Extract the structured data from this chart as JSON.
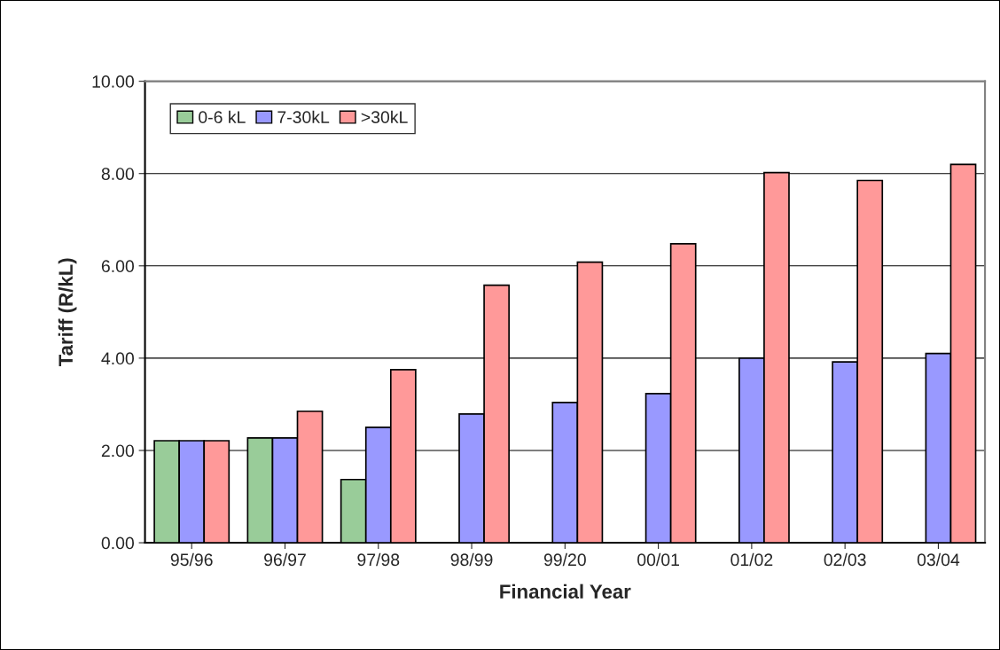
{
  "chart_data": {
    "type": "bar",
    "xlabel": "Financial Year",
    "ylabel": "Tariff (R/kL)",
    "categories": [
      "95/96",
      "96/97",
      "97/98",
      "98/99",
      "99/20",
      "00/01",
      "01/02",
      "02/03",
      "03/04"
    ],
    "series": [
      {
        "name": "0-6 kL",
        "color": "#99cc99",
        "values": [
          2.21,
          2.27,
          1.37,
          null,
          null,
          null,
          null,
          null,
          null
        ]
      },
      {
        "name": "7-30kL",
        "color": "#9999ff",
        "values": [
          2.21,
          2.27,
          2.5,
          2.79,
          3.04,
          3.23,
          4.0,
          3.92,
          4.1
        ]
      },
      {
        "name": ">30kL",
        "color": "#ff9999",
        "values": [
          2.21,
          2.85,
          3.75,
          5.58,
          6.08,
          6.48,
          8.02,
          7.85,
          8.2
        ]
      }
    ],
    "ylim": [
      0,
      10
    ],
    "yticks": [
      {
        "value": 0,
        "label": "0.00"
      },
      {
        "value": 2,
        "label": "2.00"
      },
      {
        "value": 4,
        "label": "4.00"
      },
      {
        "value": 6,
        "label": "6.00"
      },
      {
        "value": 8,
        "label": "8.00"
      },
      {
        "value": 10,
        "label": "10.00"
      }
    ],
    "grid": "y",
    "legend": "top left"
  }
}
